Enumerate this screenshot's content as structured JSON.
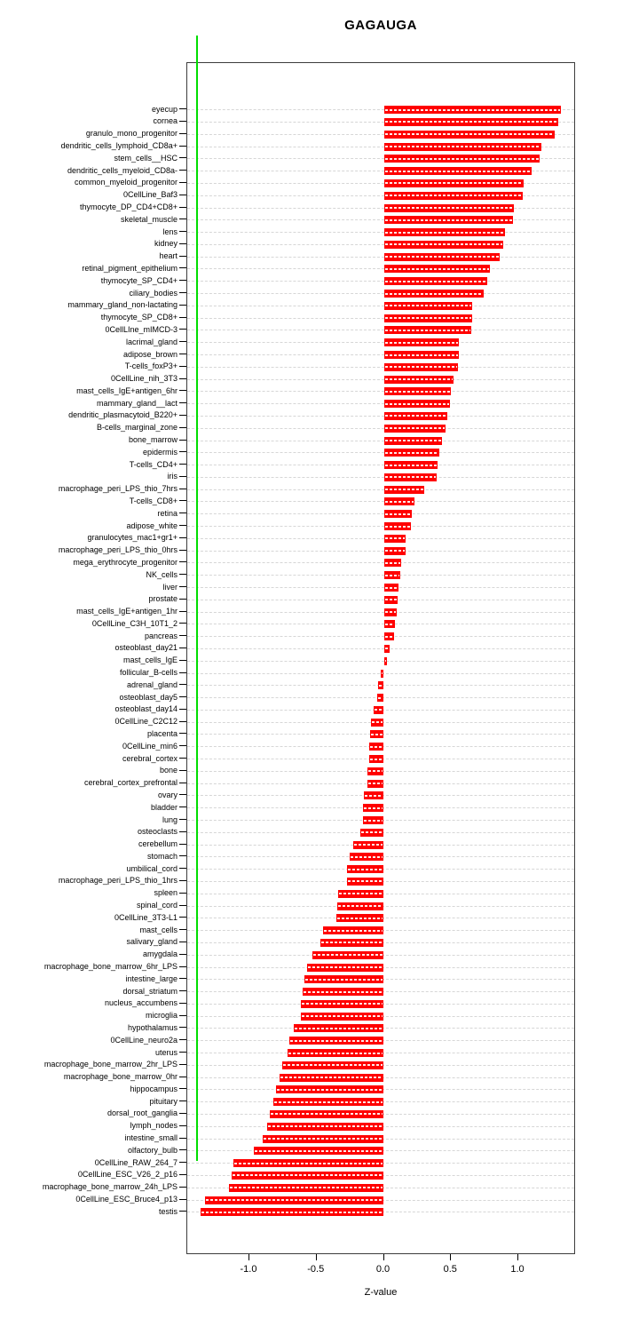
{
  "title": "GAGAUGA",
  "axis": {
    "xlabel": "Z-value",
    "x_tick_labels": [
      "-1.0",
      "-0.5",
      "0.0",
      "0.5",
      "1.0"
    ],
    "x_tick_values": [
      -1.0,
      -0.5,
      0.0,
      0.5,
      1.0
    ]
  },
  "colors": {
    "bar": "#ff0000",
    "zero_line": "#00dd00",
    "gridline": "#d6d6d6",
    "box_border": "#3c3c3c"
  },
  "chart_data": {
    "type": "bar",
    "orientation": "horizontal",
    "title": "GAGAUGA",
    "xlabel": "Z-value",
    "xlim": [
      -1.45,
      1.43
    ],
    "grid": "dashed horizontal per category",
    "zero_reference_line": 0.0,
    "categories": [
      "eyecup",
      "cornea",
      "granulo_mono_progenitor",
      "dendritic_cells_lymphoid_CD8a+",
      "stem_cells__HSC",
      "dendritic_cells_myeloid_CD8a-",
      "common_myeloid_progenitor",
      "0CellLine_Baf3",
      "thymocyte_DP_CD4+CD8+",
      "skeletal_muscle",
      "lens",
      "kidney",
      "heart",
      "retinal_pigment_epithelium",
      "thymocyte_SP_CD4+",
      "ciliary_bodies",
      "mammary_gland_non-lactating",
      "thymocyte_SP_CD8+",
      "0CellLIne_mIMCD-3",
      "lacrimal_gland",
      "adipose_brown",
      "T-cells_foxP3+",
      "0CellLine_nih_3T3",
      "mast_cells_IgE+antigen_6hr",
      "mammary_gland__lact",
      "dendritic_plasmacytoid_B220+",
      "B-cells_marginal_zone",
      "bone_marrow",
      "epidermis",
      "T-cells_CD4+",
      "iris",
      "macrophage_peri_LPS_thio_7hrs",
      "T-cells_CD8+",
      "retina",
      "adipose_white",
      "granulocytes_mac1+gr1+",
      "macrophage_peri_LPS_thio_0hrs",
      "mega_erythrocyte_progenitor",
      "NK_cells",
      "liver",
      "prostate",
      "mast_cells_IgE+antigen_1hr",
      "0CellLine_C3H_10T1_2",
      "pancreas",
      "osteoblast_day21",
      "mast_cells_IgE",
      "follicular_B-cells",
      "adrenal_gland",
      "osteoblast_day5",
      "osteoblast_day14",
      "0CellLine_C2C12",
      "placenta",
      "0CellLine_min6",
      "cerebral_cortex",
      "bone",
      "cerebral_cortex_prefrontal",
      "ovary",
      "bladder",
      "lung",
      "osteoclasts",
      "cerebellum",
      "stomach",
      "umbilical_cord",
      "macrophage_peri_LPS_thio_1hrs",
      "spleen",
      "spinal_cord",
      "0CellLine_3T3-L1",
      "mast_cells",
      "salivary_gland",
      "amygdala",
      "macrophage_bone_marrow_6hr_LPS",
      "intestine_large",
      "dorsal_striatum",
      "nucleus_accumbens",
      "microglia",
      "hypothalamus",
      "0CellLine_neuro2a",
      "uterus",
      "macrophage_bone_marrow_2hr_LPS",
      "macrophage_bone_marrow_0hr",
      "hippocampus",
      "pituitary",
      "dorsal_root_ganglia",
      "lymph_nodes",
      "intestine_small",
      "olfactory_bulb",
      "0CellLine_RAW_264_7",
      "0CellLine_ESC_V26_2_p16",
      "macrophage_bone_marrow_24h_LPS",
      "0CellLine_ESC_Bruce4_p13",
      "testis"
    ],
    "values": [
      1.32,
      1.3,
      1.27,
      1.17,
      1.16,
      1.1,
      1.04,
      1.03,
      0.97,
      0.96,
      0.9,
      0.89,
      0.86,
      0.79,
      0.77,
      0.74,
      0.66,
      0.655,
      0.65,
      0.56,
      0.555,
      0.55,
      0.52,
      0.5,
      0.49,
      0.47,
      0.46,
      0.43,
      0.41,
      0.4,
      0.39,
      0.3,
      0.23,
      0.21,
      0.2,
      0.165,
      0.16,
      0.13,
      0.12,
      0.11,
      0.1,
      0.095,
      0.084,
      0.077,
      0.046,
      0.024,
      -0.024,
      -0.046,
      -0.051,
      -0.079,
      -0.095,
      -0.1,
      -0.106,
      -0.11,
      -0.119,
      -0.121,
      -0.147,
      -0.154,
      -0.158,
      -0.178,
      -0.231,
      -0.251,
      -0.271,
      -0.277,
      -0.339,
      -0.345,
      -0.352,
      -0.453,
      -0.471,
      -0.53,
      -0.574,
      -0.592,
      -0.605,
      -0.614,
      -0.62,
      -0.667,
      -0.702,
      -0.715,
      -0.759,
      -0.777,
      -0.801,
      -0.825,
      -0.849,
      -0.869,
      -0.902,
      -0.966,
      -1.118,
      -1.135,
      -1.15,
      -1.329,
      -1.36
    ]
  }
}
